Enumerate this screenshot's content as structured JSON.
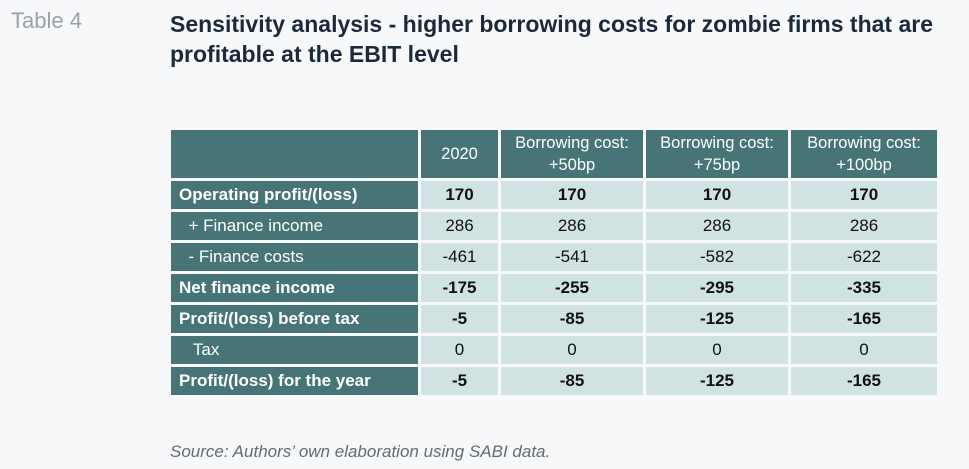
{
  "table_number": "Table 4",
  "title": "Sensitivity analysis - higher borrowing costs for zombie firms that are profitable at the EBIT level",
  "table": {
    "columns": [
      "2020",
      "Borrowing cost:\n+50bp",
      "Borrowing cost:\n+75bp",
      "Borrowing cost:\n+100bp"
    ],
    "columns_lines": [
      [
        "2020"
      ],
      [
        "Borrowing cost:",
        "+50bp"
      ],
      [
        "Borrowing cost:",
        "+75bp"
      ],
      [
        "Borrowing cost:",
        "+100bp"
      ]
    ],
    "rows": [
      {
        "label": "Operating profit/(loss)",
        "values": [
          "170",
          "170",
          "170",
          "170"
        ],
        "bold": true
      },
      {
        "label": "  + Finance income",
        "values": [
          "286",
          "286",
          "286",
          "286"
        ],
        "bold": false
      },
      {
        "label": "  - Finance costs",
        "values": [
          "-461",
          "-541",
          "-582",
          "-622"
        ],
        "bold": false
      },
      {
        "label": "Net finance income",
        "values": [
          "-175",
          "-255",
          "-295",
          "-335"
        ],
        "bold": true
      },
      {
        "label": "Profit/(loss) before tax",
        "values": [
          "-5",
          "-85",
          "-125",
          "-165"
        ],
        "bold": true
      },
      {
        "label": "   Tax",
        "values": [
          "0",
          "0",
          "0",
          "0"
        ],
        "bold": false
      },
      {
        "label": "Profit/(loss) for the year",
        "values": [
          "-5",
          "-85",
          "-125",
          "-165"
        ],
        "bold": true
      }
    ]
  },
  "source": "Source: Authors’ own elaboration using SABI data.",
  "colors": {
    "header_bg": "#477476",
    "cell_bg": "#d1e2e2",
    "title_color": "#1b2a3a"
  }
}
